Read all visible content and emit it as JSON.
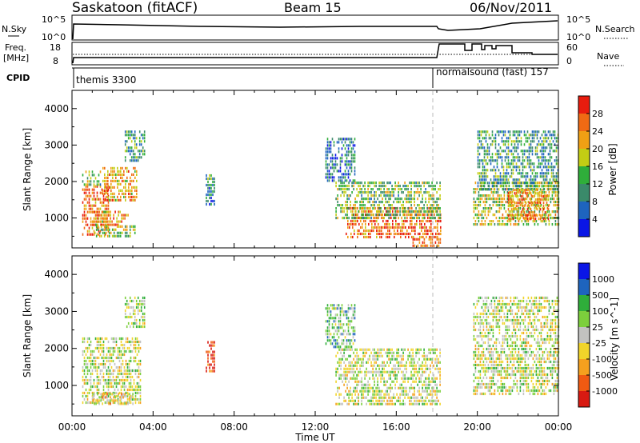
{
  "header": {
    "site": "Saskatoon (fitACF)",
    "beam": "Beam 15",
    "date": "06/Nov/2011"
  },
  "top_panel": {
    "left_label": "N.Sky",
    "left_ticks": [
      "10^5",
      "10^0"
    ],
    "right_ticks": [
      "10^5",
      "10^0"
    ],
    "right_label": "N.Search"
  },
  "freq_panel": {
    "label_line1": "Freq.",
    "label_line2": "[MHz]",
    "left_ticks": [
      "18",
      "8"
    ],
    "right_ticks": [
      "60",
      "0"
    ],
    "right_label": "Nave"
  },
  "cpid_panel": {
    "label": "CPID",
    "program1": "themis 3300",
    "program2": "normalsound (fast) 157"
  },
  "colors": {
    "power": [
      "#0a16e6",
      "#1e64be",
      "#3a8a6a",
      "#2fae3a",
      "#c3cd14",
      "#f0a014",
      "#ef6a14",
      "#e81c0e"
    ],
    "velocity": [
      "#d81a12",
      "#f05a12",
      "#f5a01e",
      "#f1d42a",
      "#c2c2c0",
      "#7ccf3c",
      "#2fae3a",
      "#1e64be",
      "#0a16e6"
    ]
  },
  "chart_data": [
    {
      "type": "heatmap",
      "title": "Power",
      "ylabel": "Slant Range [km]",
      "xlabel": "Time UT",
      "xticks": [
        "00:00",
        "04:00",
        "08:00",
        "12:00",
        "16:00",
        "20:00",
        "00:00"
      ],
      "xlim_hours": [
        0,
        24
      ],
      "ylim_km": [
        180,
        4500
      ],
      "yticks": [
        1000,
        2000,
        3000,
        4000
      ],
      "colorbar": {
        "label": "Power [dB]",
        "ticks": [
          "4",
          "8",
          "12",
          "16",
          "20",
          "24",
          "28"
        ]
      },
      "regions": [
        {
          "t0": 0.5,
          "t1": 1.8,
          "r0": 500,
          "r1": 1900,
          "level": 0.8
        },
        {
          "t0": 1.0,
          "t1": 2.8,
          "r0": 800,
          "r1": 1200,
          "level": 0.7
        },
        {
          "t0": 1.5,
          "t1": 3.2,
          "r0": 1500,
          "r1": 2400,
          "level": 0.7
        },
        {
          "t0": 1.1,
          "t1": 3.1,
          "r0": 500,
          "r1": 800,
          "level": 0.5
        },
        {
          "t0": 2.6,
          "t1": 3.6,
          "r0": 2600,
          "r1": 3400,
          "level": 0.35
        },
        {
          "t0": 0.5,
          "t1": 1.4,
          "r0": 1900,
          "r1": 2300,
          "level": 0.45
        },
        {
          "t0": 6.6,
          "t1": 7.0,
          "r0": 1400,
          "r1": 2200,
          "level": 0.3
        },
        {
          "t0": 13.5,
          "t1": 18.2,
          "r0": 500,
          "r1": 1300,
          "level": 0.8
        },
        {
          "t0": 13.0,
          "t1": 18.2,
          "r0": 1000,
          "r1": 2000,
          "level": 0.45
        },
        {
          "t0": 12.5,
          "t1": 14.0,
          "r0": 2000,
          "r1": 3200,
          "level": 0.25
        },
        {
          "t0": 16.8,
          "t1": 18.2,
          "r0": 230,
          "r1": 450,
          "level": 0.85
        },
        {
          "t0": 19.8,
          "t1": 24.0,
          "r0": 800,
          "r1": 2000,
          "level": 0.55
        },
        {
          "t0": 20.0,
          "t1": 24.0,
          "r0": 1800,
          "r1": 3400,
          "level": 0.35
        },
        {
          "t0": 21.5,
          "t1": 23.5,
          "r0": 1000,
          "r1": 1800,
          "level": 0.75
        }
      ]
    },
    {
      "type": "heatmap",
      "title": "Velocity",
      "ylabel": "Slant Range [km]",
      "xlabel": "Time UT",
      "xticks": [
        "00:00",
        "04:00",
        "08:00",
        "12:00",
        "16:00",
        "20:00",
        "00:00"
      ],
      "xlim_hours": [
        0,
        24
      ],
      "ylim_km": [
        180,
        4500
      ],
      "yticks": [
        1000,
        2000,
        3000,
        4000
      ],
      "colorbar": {
        "label": "Velocity [m s^-1]",
        "ticks": [
          "1000",
          "500",
          "100",
          "25",
          "-25",
          "-100",
          "-500",
          "-1000"
        ]
      },
      "regions": [
        {
          "t0": 0.5,
          "t1": 3.4,
          "r0": 500,
          "r1": 2300,
          "level": 0.5
        },
        {
          "t0": 1.0,
          "t1": 3.0,
          "r0": 500,
          "r1": 800,
          "level": 0.4
        },
        {
          "t0": 2.6,
          "t1": 3.6,
          "r0": 2600,
          "r1": 3400,
          "level": 0.55
        },
        {
          "t0": 6.6,
          "t1": 7.0,
          "r0": 1400,
          "r1": 2200,
          "level": 0.1
        },
        {
          "t0": 13.0,
          "t1": 18.2,
          "r0": 500,
          "r1": 2000,
          "level": 0.5
        },
        {
          "t0": 12.5,
          "t1": 14.0,
          "r0": 2000,
          "r1": 3200,
          "level": 0.65
        },
        {
          "t0": 19.8,
          "t1": 24.0,
          "r0": 800,
          "r1": 3400,
          "level": 0.5
        }
      ]
    }
  ]
}
